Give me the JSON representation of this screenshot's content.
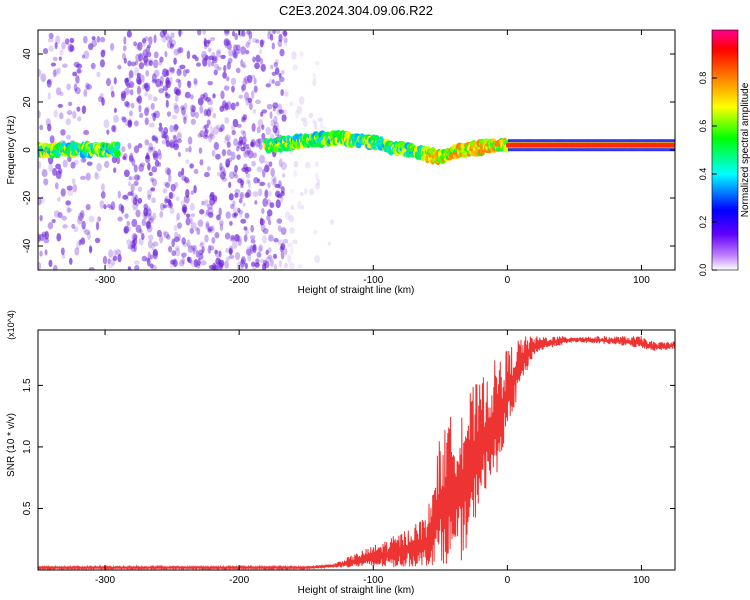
{
  "figure": {
    "title": "C2E3.2024.304.09.06.R22"
  },
  "colorbar": {
    "label": "Normalized spectral amplitude",
    "ticks": [
      "0.0",
      "0.2",
      "0.4",
      "0.6",
      "0.8"
    ],
    "range": [
      0,
      1
    ],
    "colormap": [
      "#ffffff",
      "#8000ff",
      "#0000ff",
      "#00ffff",
      "#00ff00",
      "#ffff00",
      "#ff8000",
      "#ff0000",
      "#ff0080"
    ]
  },
  "chart_data": [
    {
      "type": "heatmap",
      "xlabel": "Height of straight line (km)",
      "ylabel": "Frequency (Hz)",
      "xlim": [
        -350,
        125
      ],
      "ylim": [
        -50,
        50
      ],
      "xticks": [
        -300,
        -200,
        -100,
        0,
        100
      ],
      "yticks": [
        -40,
        -20,
        0,
        20,
        40
      ],
      "ridge": {
        "x": [
          -350,
          -300,
          -175,
          -150,
          -125,
          -100,
          -75,
          -50,
          -40,
          -30,
          -20,
          -10,
          0,
          25,
          50,
          75,
          100,
          125
        ],
        "y": [
          0,
          0,
          2,
          4,
          5,
          3,
          0,
          -3,
          -1,
          0,
          1,
          2,
          2,
          2,
          2,
          2,
          2,
          2
        ]
      },
      "noise_region_x": [
        -350,
        -160
      ]
    },
    {
      "type": "line",
      "xlabel": "Height of straight line (km)",
      "ylabel": "SNR (10 * v/v)",
      "scale_label": "(x10^4)",
      "xlim": [
        -350,
        125
      ],
      "ylim": [
        0,
        1.95
      ],
      "xticks": [
        -300,
        -200,
        -100,
        0,
        100
      ],
      "yticks": [
        0.5,
        1.0,
        1.5
      ],
      "ytick_labels": [
        "0.5",
        "1.0",
        "1.5"
      ],
      "color": "#ee3333",
      "envelope": {
        "x": [
          -350,
          -150,
          -130,
          -100,
          -80,
          -60,
          -50,
          -40,
          -30,
          -20,
          -10,
          0,
          10,
          20,
          30,
          50,
          80,
          100,
          110,
          125
        ],
        "low": [
          0.01,
          0.01,
          0.02,
          0.02,
          0.02,
          0.03,
          0.05,
          0.05,
          0.1,
          0.6,
          0.7,
          1.1,
          1.5,
          1.75,
          1.8,
          1.85,
          1.83,
          1.8,
          1.78,
          1.8
        ],
        "high": [
          0.03,
          0.03,
          0.05,
          0.2,
          0.3,
          0.45,
          1.1,
          1.3,
          1.45,
          1.55,
          1.7,
          1.8,
          1.9,
          1.9,
          1.9,
          1.9,
          1.9,
          1.9,
          1.85,
          1.86
        ]
      }
    }
  ]
}
